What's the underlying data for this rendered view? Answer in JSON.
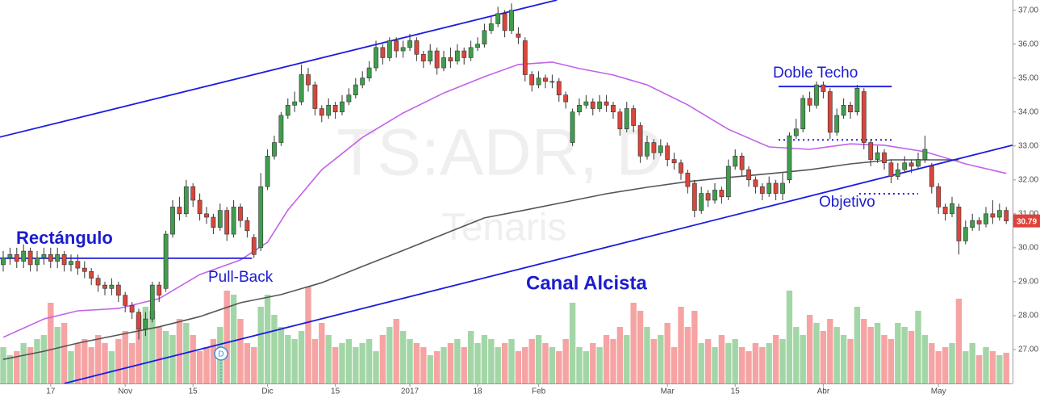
{
  "chart_data": {
    "type": "candlestick",
    "watermark": {
      "symbol": "TS:ADR, D",
      "name": "Tenaris"
    },
    "categories": [
      null,
      null,
      null,
      null,
      null,
      null,
      null,
      "17",
      null,
      null,
      null,
      null,
      null,
      null,
      null,
      null,
      null,
      null,
      "Nov",
      null,
      null,
      null,
      null,
      null,
      null,
      null,
      null,
      null,
      "15",
      null,
      null,
      null,
      null,
      null,
      null,
      null,
      null,
      null,
      null,
      "Dic",
      null,
      null,
      null,
      null,
      null,
      null,
      null,
      null,
      null,
      "15",
      null,
      null,
      null,
      null,
      null,
      null,
      null,
      null,
      null,
      null,
      "2017",
      null,
      null,
      null,
      null,
      null,
      null,
      null,
      null,
      null,
      "18",
      null,
      null,
      null,
      null,
      null,
      null,
      null,
      null,
      "Feb",
      null,
      null,
      null,
      null,
      null,
      null,
      null,
      null,
      null,
      null,
      null,
      null,
      null,
      null,
      null,
      null,
      null,
      null,
      "Mar",
      null,
      null,
      null,
      null,
      null,
      null,
      null,
      null,
      null,
      "15",
      null,
      null,
      null,
      null,
      null,
      null,
      null,
      null,
      null,
      null,
      null,
      null,
      "Abr",
      null,
      null,
      null,
      null,
      null,
      null,
      null,
      null,
      null,
      null,
      null,
      null,
      null,
      null,
      null,
      null,
      "May",
      null,
      null,
      null,
      null,
      null,
      null,
      null,
      null,
      null,
      null
    ],
    "open": [
      29.5,
      29.7,
      29.8,
      29.6,
      29.9,
      29.5,
      29.7,
      29.8,
      29.6,
      29.8,
      29.5,
      29.6,
      29.4,
      29.3,
      29.1,
      28.9,
      28.8,
      28.9,
      28.6,
      28.3,
      28.1,
      27.6,
      27.9,
      28.9,
      28.8,
      30.4,
      31.2,
      31.0,
      31.8,
      31.4,
      31.0,
      30.9,
      30.6,
      31.1,
      30.4,
      31.2,
      30.8,
      30.3,
      30.0,
      31.8,
      32.7,
      33.1,
      33.9,
      34.2,
      34.3,
      35.1,
      34.8,
      34.1,
      33.9,
      34.2,
      34.0,
      34.3,
      34.5,
      34.8,
      35.0,
      35.3,
      35.9,
      35.6,
      36.1,
      35.8,
      35.9,
      36.1,
      35.7,
      35.5,
      35.8,
      35.3,
      35.6,
      35.5,
      35.8,
      35.6,
      35.9,
      36.0,
      36.4,
      36.6,
      36.9,
      36.4,
      36.3,
      36.1,
      35.1,
      34.8,
      35.0,
      34.9,
      34.9,
      34.5,
      33.1,
      34.0,
      34.2,
      34.3,
      34.1,
      34.3,
      34.2,
      34.0,
      33.5,
      34.1,
      33.6,
      32.7,
      33.1,
      32.8,
      33.0,
      32.6,
      32.5,
      32.2,
      31.9,
      31.1,
      31.6,
      31.4,
      31.7,
      31.5,
      32.4,
      32.7,
      32.3,
      32.0,
      31.8,
      31.6,
      31.9,
      31.6,
      32.0,
      33.3,
      33.5,
      34.4,
      34.2,
      34.8,
      34.6,
      33.4,
      33.9,
      34.2,
      34.0,
      34.6,
      33.1,
      32.6,
      32.8,
      32.5,
      32.1,
      32.3,
      32.5,
      32.4,
      32.6,
      32.4,
      31.8,
      31.2,
      31.0,
      31.2,
      30.2,
      30.6,
      30.8,
      30.7,
      31.0,
      30.9,
      31.1
    ],
    "high": [
      29.9,
      30.0,
      30.0,
      30.1,
      30.0,
      29.9,
      30.0,
      30.0,
      30.0,
      29.9,
      29.8,
      29.8,
      29.6,
      29.4,
      29.2,
      29.0,
      29.1,
      29.0,
      28.7,
      28.4,
      28.2,
      28.1,
      29.0,
      29.0,
      30.5,
      31.4,
      31.5,
      32.0,
      31.9,
      31.6,
      31.2,
      31.0,
      31.3,
      31.2,
      31.4,
      31.3,
      30.9,
      30.4,
      32.2,
      32.9,
      33.3,
      34.0,
      34.4,
      34.6,
      35.4,
      35.3,
      34.9,
      34.2,
      34.4,
      34.3,
      34.5,
      34.7,
      35.0,
      35.2,
      35.5,
      36.1,
      36.0,
      36.2,
      36.2,
      36.1,
      36.3,
      36.2,
      35.8,
      36.0,
      35.9,
      35.8,
      35.9,
      36.0,
      35.9,
      36.1,
      36.2,
      36.6,
      36.8,
      37.1,
      37.0,
      37.2,
      36.5,
      36.2,
      35.2,
      35.2,
      35.1,
      35.1,
      35.0,
      34.6,
      34.1,
      34.4,
      34.5,
      34.4,
      34.5,
      34.5,
      34.3,
      34.1,
      34.3,
      34.2,
      33.7,
      33.3,
      33.2,
      33.2,
      33.1,
      32.8,
      32.6,
      32.3,
      32.0,
      31.8,
      31.7,
      31.9,
      31.8,
      32.6,
      32.9,
      32.8,
      32.4,
      32.1,
      31.9,
      32.1,
      32.0,
      32.2,
      33.4,
      33.8,
      34.5,
      34.6,
      34.9,
      34.9,
      34.7,
      34.1,
      34.4,
      34.3,
      34.8,
      34.7,
      33.2,
      33.0,
      32.9,
      32.6,
      32.5,
      32.7,
      32.6,
      32.8,
      33.3,
      32.5,
      31.9,
      31.3,
      31.5,
      31.3,
      30.8,
      31.0,
      30.9,
      31.2,
      31.4,
      31.3,
      31.2
    ],
    "low": [
      29.3,
      29.5,
      29.4,
      29.4,
      29.3,
      29.3,
      29.5,
      29.4,
      29.4,
      29.3,
      29.3,
      29.2,
      29.1,
      28.9,
      28.7,
      28.6,
      28.6,
      28.4,
      28.1,
      27.9,
      27.3,
      27.4,
      27.8,
      28.4,
      28.7,
      30.3,
      30.8,
      30.9,
      31.2,
      30.8,
      30.7,
      30.4,
      30.5,
      30.2,
      30.3,
      30.6,
      30.3,
      29.7,
      29.9,
      31.7,
      32.6,
      33.0,
      33.8,
      34.0,
      34.2,
      34.6,
      33.9,
      33.7,
      33.8,
      33.8,
      33.9,
      34.2,
      34.4,
      34.7,
      34.9,
      35.2,
      35.4,
      35.5,
      35.6,
      35.6,
      35.8,
      35.5,
      35.3,
      35.4,
      35.1,
      35.2,
      35.3,
      35.4,
      35.4,
      35.5,
      35.8,
      35.9,
      36.3,
      36.5,
      36.2,
      36.3,
      36.0,
      34.9,
      34.6,
      34.7,
      34.7,
      34.7,
      34.3,
      34.1,
      33.0,
      33.9,
      34.1,
      33.9,
      34.0,
      34.0,
      33.8,
      33.3,
      33.4,
      33.4,
      32.5,
      32.6,
      32.6,
      32.7,
      32.4,
      32.3,
      32.0,
      31.6,
      30.9,
      31.0,
      31.2,
      31.3,
      31.3,
      31.4,
      32.3,
      32.1,
      31.8,
      31.6,
      31.4,
      31.5,
      31.4,
      31.4,
      31.9,
      33.2,
      33.4,
      34.0,
      34.1,
      34.4,
      33.2,
      33.3,
      33.8,
      33.8,
      33.9,
      32.9,
      32.4,
      32.5,
      32.3,
      31.9,
      32.0,
      32.2,
      32.2,
      32.3,
      32.5,
      31.6,
      31.0,
      30.8,
      30.9,
      29.8,
      30.1,
      30.5,
      30.5,
      30.6,
      30.7,
      30.8,
      30.7
    ],
    "close": [
      29.7,
      29.8,
      29.6,
      29.9,
      29.5,
      29.7,
      29.8,
      29.6,
      29.8,
      29.5,
      29.6,
      29.4,
      29.3,
      29.1,
      28.9,
      28.8,
      28.9,
      28.6,
      28.3,
      28.1,
      27.6,
      27.9,
      28.9,
      28.6,
      30.4,
      31.2,
      31.0,
      31.8,
      31.4,
      31.0,
      30.9,
      30.6,
      31.1,
      30.4,
      31.2,
      30.8,
      30.5,
      29.8,
      31.8,
      32.7,
      33.1,
      33.9,
      34.2,
      34.3,
      35.1,
      34.8,
      34.1,
      33.9,
      34.2,
      34.0,
      34.3,
      34.5,
      34.8,
      35.0,
      35.3,
      35.9,
      35.6,
      36.1,
      35.8,
      35.9,
      36.1,
      35.7,
      35.5,
      35.8,
      35.3,
      35.6,
      35.5,
      35.8,
      35.6,
      35.9,
      36.0,
      36.4,
      36.6,
      36.9,
      36.4,
      37.0,
      36.2,
      35.1,
      34.8,
      35.0,
      34.9,
      34.9,
      34.5,
      34.3,
      34.0,
      34.2,
      34.3,
      34.1,
      34.3,
      34.2,
      34.0,
      33.5,
      34.1,
      33.6,
      32.7,
      33.1,
      32.8,
      33.0,
      32.6,
      32.5,
      32.2,
      31.8,
      31.1,
      31.6,
      31.4,
      31.7,
      31.5,
      32.4,
      32.7,
      32.3,
      32.0,
      31.8,
      31.6,
      31.9,
      31.6,
      31.9,
      33.3,
      33.5,
      34.4,
      34.2,
      34.8,
      34.6,
      33.4,
      33.9,
      34.2,
      34.0,
      34.7,
      33.1,
      32.6,
      32.8,
      32.5,
      32.1,
      32.3,
      32.5,
      32.4,
      32.6,
      32.9,
      31.8,
      31.2,
      31.0,
      31.3,
      30.2,
      30.6,
      30.8,
      30.7,
      31.0,
      30.9,
      31.1,
      30.79
    ],
    "volume": [
      45,
      35,
      40,
      50,
      45,
      55,
      60,
      100,
      70,
      75,
      40,
      50,
      55,
      45,
      60,
      50,
      40,
      55,
      65,
      50,
      85,
      95,
      90,
      70,
      65,
      60,
      80,
      75,
      60,
      40,
      45,
      55,
      70,
      115,
      110,
      80,
      50,
      45,
      95,
      110,
      85,
      70,
      60,
      55,
      65,
      120,
      55,
      75,
      60,
      45,
      50,
      55,
      45,
      50,
      55,
      40,
      60,
      70,
      80,
      65,
      55,
      50,
      45,
      35,
      40,
      45,
      50,
      55,
      45,
      65,
      50,
      60,
      55,
      45,
      50,
      55,
      40,
      45,
      55,
      60,
      50,
      45,
      40,
      55,
      100,
      45,
      40,
      50,
      45,
      60,
      55,
      70,
      60,
      100,
      90,
      70,
      55,
      60,
      75,
      45,
      95,
      70,
      90,
      50,
      55,
      45,
      60,
      50,
      55,
      45,
      40,
      50,
      45,
      50,
      60,
      55,
      115,
      70,
      60,
      85,
      75,
      65,
      80,
      70,
      60,
      55,
      95,
      80,
      70,
      75,
      60,
      55,
      75,
      70,
      65,
      90,
      60,
      50,
      40,
      45,
      50,
      105,
      40,
      50,
      35,
      45,
      40,
      35,
      38
    ],
    "up_color": "#3f9e4d",
    "down_color": "#d9463b",
    "volume_up_color": "#a3d6a6",
    "volume_down_color": "#f6a3a3",
    "ylim": [
      26,
      37.3
    ],
    "yticks": [
      {
        "value": 27,
        "label": "27.00"
      },
      {
        "value": 28,
        "label": "28.00"
      },
      {
        "value": 29,
        "label": "29.00"
      },
      {
        "value": 30,
        "label": "30.00"
      },
      {
        "value": 31,
        "label": "31.00"
      },
      {
        "value": 32,
        "label": "32.00"
      },
      {
        "value": 33,
        "label": "33.00"
      },
      {
        "value": 34,
        "label": "34.00"
      },
      {
        "value": 35,
        "label": "35.00"
      },
      {
        "value": 36,
        "label": "36.00"
      },
      {
        "value": 37,
        "label": "37.00"
      }
    ],
    "y2lim": [
      0,
      475
    ],
    "last_price_color": "#e0413a",
    "moving_averages": [
      {
        "color": "#c262ea",
        "x": [
          0,
          6,
          11,
          17,
          23,
          29,
          35,
          39,
          42,
          47,
          53,
          59,
          65,
          71,
          76,
          81,
          85,
          90,
          95,
          101,
          107,
          113,
          119,
          125,
          130,
          136,
          142,
          148
        ],
        "values": [
          27.36,
          27.9,
          28.14,
          28.21,
          28.5,
          29.21,
          29.64,
          30.16,
          31.11,
          32.3,
          33.25,
          33.97,
          34.56,
          35.04,
          35.4,
          35.47,
          35.28,
          35.09,
          34.8,
          34.21,
          33.49,
          32.97,
          32.9,
          33.06,
          33.02,
          32.83,
          32.47,
          32.19
        ]
      },
      {
        "color": "#555555",
        "x": [
          0,
          6,
          11,
          17,
          23,
          29,
          35,
          41,
          47,
          53,
          59,
          65,
          71,
          77,
          83,
          89,
          95,
          101,
          107,
          113,
          119,
          125,
          131,
          136,
          141
        ],
        "values": [
          26.71,
          26.95,
          27.19,
          27.43,
          27.67,
          27.97,
          28.38,
          28.62,
          28.97,
          29.45,
          29.92,
          30.4,
          30.88,
          31.11,
          31.35,
          31.59,
          31.78,
          31.95,
          32.07,
          32.18,
          32.3,
          32.47,
          32.59,
          32.59,
          32.59
        ]
      }
    ],
    "drawings": [
      {
        "color": "#1c1ce0",
        "style": "solid",
        "x": [
          -0.5,
          81.7
        ],
        "values": [
          33.26,
          37.3
        ]
      },
      {
        "color": "#1c1ce0",
        "style": "solid",
        "x": [
          9.0,
          148.9
        ],
        "values": [
          26.0,
          33.02
        ]
      },
      {
        "color": "#1c1ce0",
        "style": "solid",
        "x": [
          -0.5,
          36.7
        ],
        "values": [
          29.69,
          29.69
        ]
      },
      {
        "color": "#1c1ce0",
        "style": "solid",
        "x": [
          114.4,
          131.1
        ],
        "values": [
          34.75,
          34.75
        ]
      },
      {
        "color": "#1c1ce0",
        "style": "dotted",
        "x": [
          114.4,
          131.1
        ],
        "values": [
          33.18,
          33.18
        ]
      },
      {
        "color": "#1c1ce0",
        "style": "dotted",
        "x": [
          126.3,
          135.0
        ],
        "values": [
          31.59,
          31.59
        ]
      }
    ],
    "annotation_color": "#1c1ccf",
    "annotations": [
      "Rectángulo",
      "Pull-Back",
      "Canal Alcista",
      "Doble Techo",
      "Objetivo"
    ],
    "dividend_marker": "D"
  }
}
